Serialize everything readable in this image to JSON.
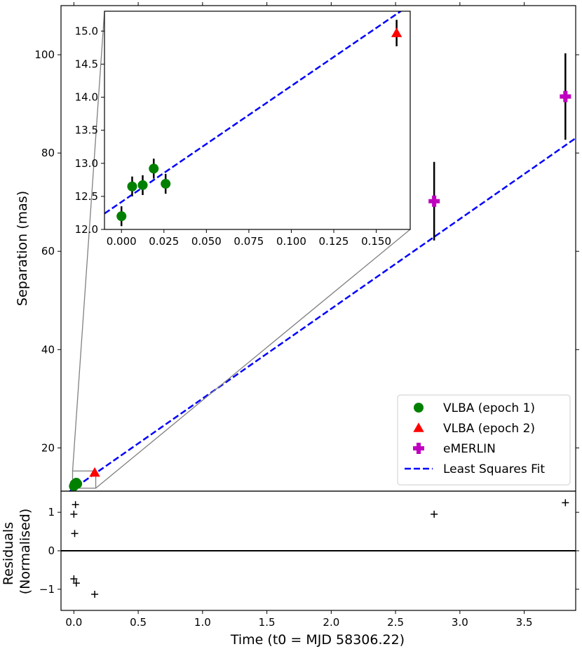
{
  "chart_data": [
    {
      "type": "scatter",
      "panel": "main",
      "xlabel": "",
      "ylabel": "Separation (mas)",
      "xlim": [
        -0.1,
        3.9
      ],
      "ylim": [
        11.2,
        110
      ],
      "xticks": [
        0.0,
        0.5,
        1.0,
        1.5,
        2.0,
        2.5,
        3.0,
        3.5
      ],
      "yticks": [
        20,
        40,
        60,
        80,
        100
      ],
      "ytick_labels": [
        "20",
        "40",
        "60",
        "80",
        "100"
      ],
      "series": [
        {
          "name": "VLBA (epoch 1)",
          "marker": "circle",
          "color": "#008000",
          "points": [
            {
              "x": 0.0,
              "y": 12.2,
              "yerr": 0.15
            },
            {
              "x": 0.0063,
              "y": 12.65,
              "yerr": 0.15
            },
            {
              "x": 0.0125,
              "y": 12.67,
              "yerr": 0.15
            },
            {
              "x": 0.019,
              "y": 12.92,
              "yerr": 0.15
            },
            {
              "x": 0.026,
              "y": 12.69,
              "yerr": 0.15
            }
          ]
        },
        {
          "name": "VLBA (epoch 2)",
          "marker": "triangle",
          "color": "#ff0000",
          "points": [
            {
              "x": 0.162,
              "y": 14.97,
              "yerr": 0.2
            }
          ]
        },
        {
          "name": "eMERLIN",
          "marker": "plus",
          "color": "#bf00bf",
          "points": [
            {
              "x": 2.8,
              "y": 70.2,
              "yerr": 8.0
            },
            {
              "x": 3.82,
              "y": 91.5,
              "yerr": 8.8
            }
          ]
        }
      ],
      "fit": {
        "name": "Least Squares Fit",
        "color": "#0000ff",
        "style": "dashed",
        "x": [
          -0.1,
          3.9
        ],
        "y": [
          9.93,
          83.03
        ]
      },
      "legend": {
        "position": "lower-right",
        "entries": [
          "VLBA (epoch 1)",
          "VLBA (epoch 2)",
          "eMERLIN",
          "Least Squares Fit"
        ]
      },
      "zoom_box": {
        "x": [
          -0.01,
          0.17
        ],
        "y": [
          11.8,
          15.3
        ]
      }
    },
    {
      "type": "scatter",
      "panel": "inset",
      "xlim": [
        -0.01,
        0.17
      ],
      "ylim": [
        12.0,
        15.3
      ],
      "xticks": [
        0.0,
        0.025,
        0.05,
        0.075,
        0.1,
        0.125,
        0.15
      ],
      "xtick_labels": [
        "0.000",
        "0.025",
        "0.050",
        "0.075",
        "0.100",
        "0.125",
        "0.150"
      ],
      "yticks": [
        12.0,
        12.5,
        13.0,
        13.5,
        14.0,
        14.5,
        15.0
      ],
      "ytick_labels": [
        "12.0",
        "12.5",
        "13.0",
        "13.5",
        "14.0",
        "14.5",
        "15.0"
      ],
      "fit_line": {
        "x": [
          -0.01,
          0.165
        ],
        "y": [
          12.24,
          15.31
        ]
      }
    },
    {
      "type": "scatter",
      "panel": "residuals",
      "xlabel": "Time (t0 = MJD 58306.22)",
      "ylabel": "Residuals\n(Normalised)",
      "ylabel_lines": [
        "Residuals",
        "(Normalised)"
      ],
      "xlim": [
        -0.1,
        3.9
      ],
      "ylim": [
        -1.55,
        1.55
      ],
      "xticks": [
        0.0,
        0.5,
        1.0,
        1.5,
        2.0,
        2.5,
        3.0,
        3.5
      ],
      "xtick_labels": [
        "0.0",
        "0.5",
        "1.0",
        "1.5",
        "2.0",
        "2.5",
        "3.0",
        "3.5"
      ],
      "yticks": [
        -1,
        0,
        1
      ],
      "ytick_labels": [
        "−1",
        "0",
        "1"
      ],
      "zero_line": 0,
      "points": [
        {
          "x": 0.0,
          "y": 0.95
        },
        {
          "x": 0.0,
          "y": -0.73
        },
        {
          "x": 0.0125,
          "y": 1.2
        },
        {
          "x": 0.019,
          "y": -0.84
        },
        {
          "x": 0.0063,
          "y": 0.45
        },
        {
          "x": 0.162,
          "y": -1.13
        },
        {
          "x": 2.8,
          "y": 0.95
        },
        {
          "x": 3.82,
          "y": 1.25
        }
      ]
    }
  ]
}
